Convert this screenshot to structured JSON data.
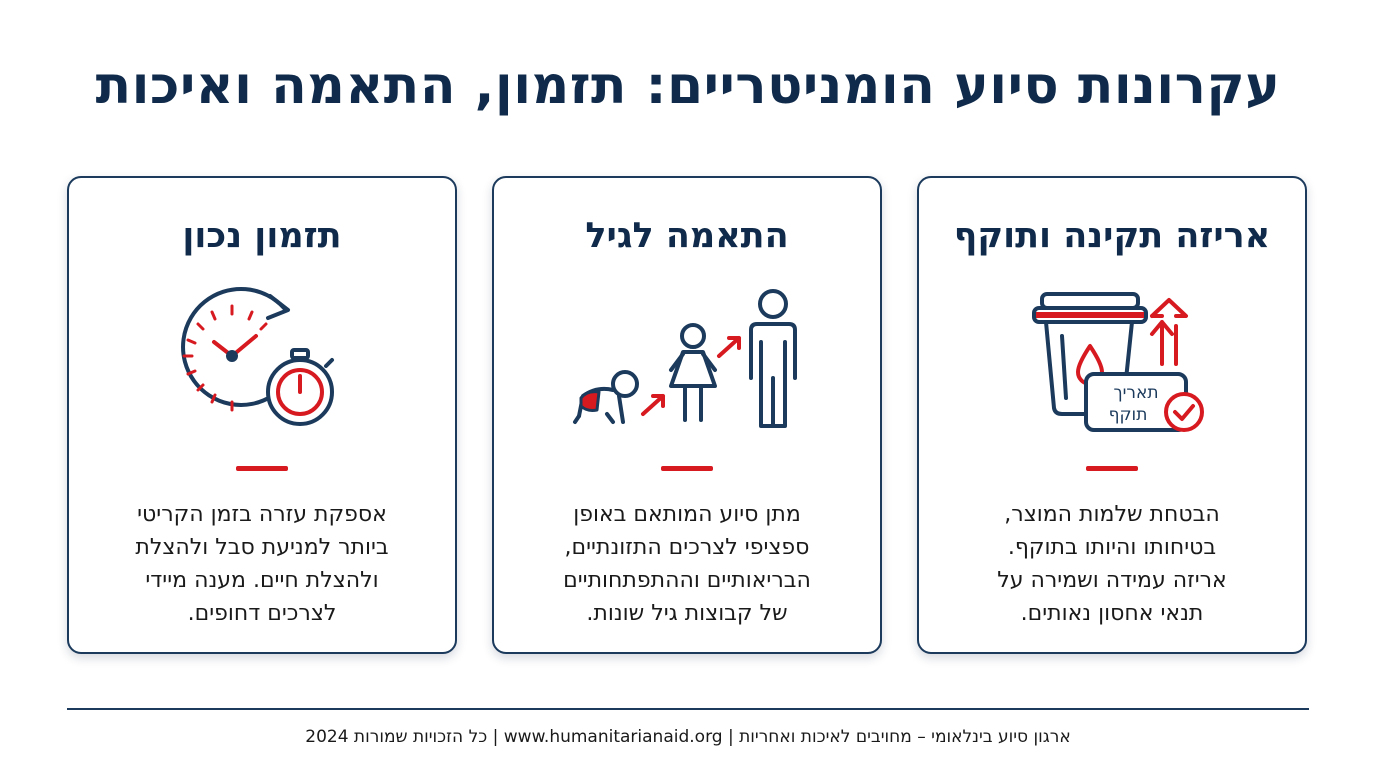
{
  "page": {
    "title": "עקרונות סיוע הומניטריים: תזמון, התאמה ואיכות",
    "colors": {
      "navy": "#0f2a4a",
      "accent_red": "#d71920"
    }
  },
  "cards": [
    {
      "title": "אריזה תקינה ותוקף",
      "icon": "package-expiry-icon",
      "label_line1": "תאריך",
      "label_line2": "תוקף",
      "text_lines": [
        "הבטחת שלמות המוצר,",
        "בטיחותו והיותו בתוקף.",
        "אריזה עמידה ושמירה על",
        "תנאי אחסון נאותים."
      ]
    },
    {
      "title": "התאמה לגיל",
      "icon": "age-groups-icon",
      "text_lines": [
        "מתן סיוע המותאם באופן",
        "ספציפי לצרכים התזונתיים,",
        "הבריאותיים וההתפתחותיים",
        "של קבוצות גיל שונות."
      ]
    },
    {
      "title": "תזמון נכון",
      "icon": "clock-stopwatch-icon",
      "text_lines": [
        "אספקת עזרה בזמן הקריטי",
        "ביותר למניעת סבל ולהצלת",
        "ולהצלת חיים. מענה מיידי",
        "לצרכים דחופים."
      ]
    }
  ],
  "footer": {
    "text": "ארגון סיוע בינלאומי – מחויבים לאיכות ואחריות | www.humanitarianaid.org | כל הזכויות שמורות 2024"
  }
}
